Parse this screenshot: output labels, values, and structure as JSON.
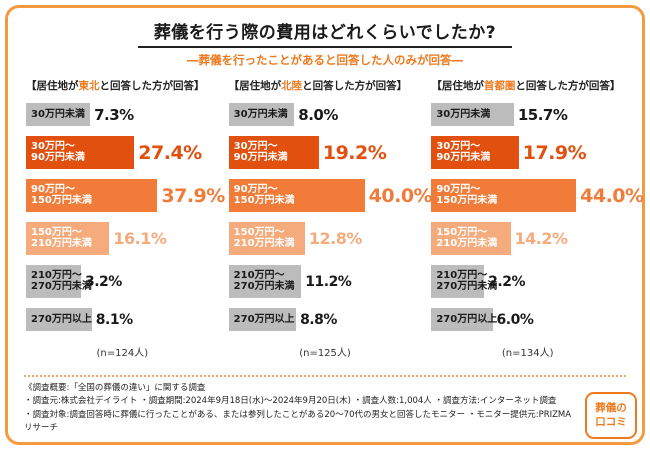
{
  "header": {
    "title": "葬儀を行う際の費用はどれくらいでしたか?",
    "subtitle": "―葬儀を行ったことがあると回答した人のみが回答―"
  },
  "chart_data": {
    "type": "bar",
    "orientation": "horizontal",
    "title": "葬儀を行う際の費用はどれくらいでしたか?",
    "subtitle": "―葬儀を行ったことがあると回答した人のみが回答―",
    "value_unit": "%",
    "xlim": [
      0,
      50
    ],
    "categories": [
      "30万円未満",
      "30万円〜90万円未満",
      "90万円〜150万円未満",
      "150万円〜210万円未満",
      "210万円〜270万円未満",
      "270万円以上"
    ],
    "category_lines": [
      [
        "30万円未満"
      ],
      [
        "30万円〜",
        "90万円未満"
      ],
      [
        "90万円〜",
        "150万円未満"
      ],
      [
        "150万円〜",
        "210万円未満"
      ],
      [
        "210万円〜",
        "270万円未満"
      ],
      [
        "270万円以上"
      ]
    ],
    "series": [
      {
        "name": "東北",
        "heading": {
          "prefix": "【居住地が",
          "highlight": "東北",
          "suffix": "と回答した方が回答】"
        },
        "n_label": "(n=124人)",
        "values": [
          7.3,
          27.4,
          37.9,
          16.1,
          3.2,
          8.1
        ]
      },
      {
        "name": "北陸",
        "heading": {
          "prefix": "【居住地が",
          "highlight": "北陸",
          "suffix": "と回答した方が回答】"
        },
        "n_label": "(n=125人)",
        "values": [
          8.0,
          19.2,
          40.0,
          12.8,
          11.2,
          8.8
        ]
      },
      {
        "name": "首都圏",
        "heading": {
          "prefix": "【居住地が",
          "highlight": "首都圏",
          "suffix": "と回答した方が回答】"
        },
        "n_label": "(n=134人)",
        "values": [
          15.7,
          17.9,
          44.0,
          14.2,
          2.2,
          6.0
        ]
      }
    ],
    "bar_styles": [
      {
        "bar": "#bcbcbc",
        "label": "#1a1a1a",
        "pct": "#1a1a1a",
        "pct_size": 15
      },
      {
        "bar": "#e2500f",
        "label": "#ffffff",
        "pct": "#e2500f",
        "pct_size": 19
      },
      {
        "bar": "#f17c3a",
        "label": "#ffffff",
        "pct": "#f17c3a",
        "pct_size": 19
      },
      {
        "bar": "#f6ab7c",
        "label": "#ffffff",
        "pct": "#f6ab7c",
        "pct_size": 16
      },
      {
        "bar": "#bcbcbc",
        "label": "#1a1a1a",
        "pct": "#1a1a1a",
        "pct_size": 14
      },
      {
        "bar": "#bcbcbc",
        "label": "#1a1a1a",
        "pct": "#1a1a1a",
        "pct_size": 14
      }
    ]
  },
  "styles": {
    "frame_color": "#f59a3e",
    "accent_color": "#ee7a1f"
  },
  "footer": {
    "line1": "《調査概要:「全国の葬儀の違い」に関する調査",
    "line2": "・調査元:株式会社デイライト ・調査期間:2024年9月18日(水)〜2024年9月20日(木) ・調査人数:1,004人 ・調査方法:インターネット調査",
    "line3": "・調査対象:調査回答時に葬儀に行ったことがある、または参列したことがある20〜70代の男女と回答したモニター ・モニター提供元:PRIZMAリサーチ",
    "logo_line1": "葬儀の",
    "logo_line2": "口コミ"
  }
}
